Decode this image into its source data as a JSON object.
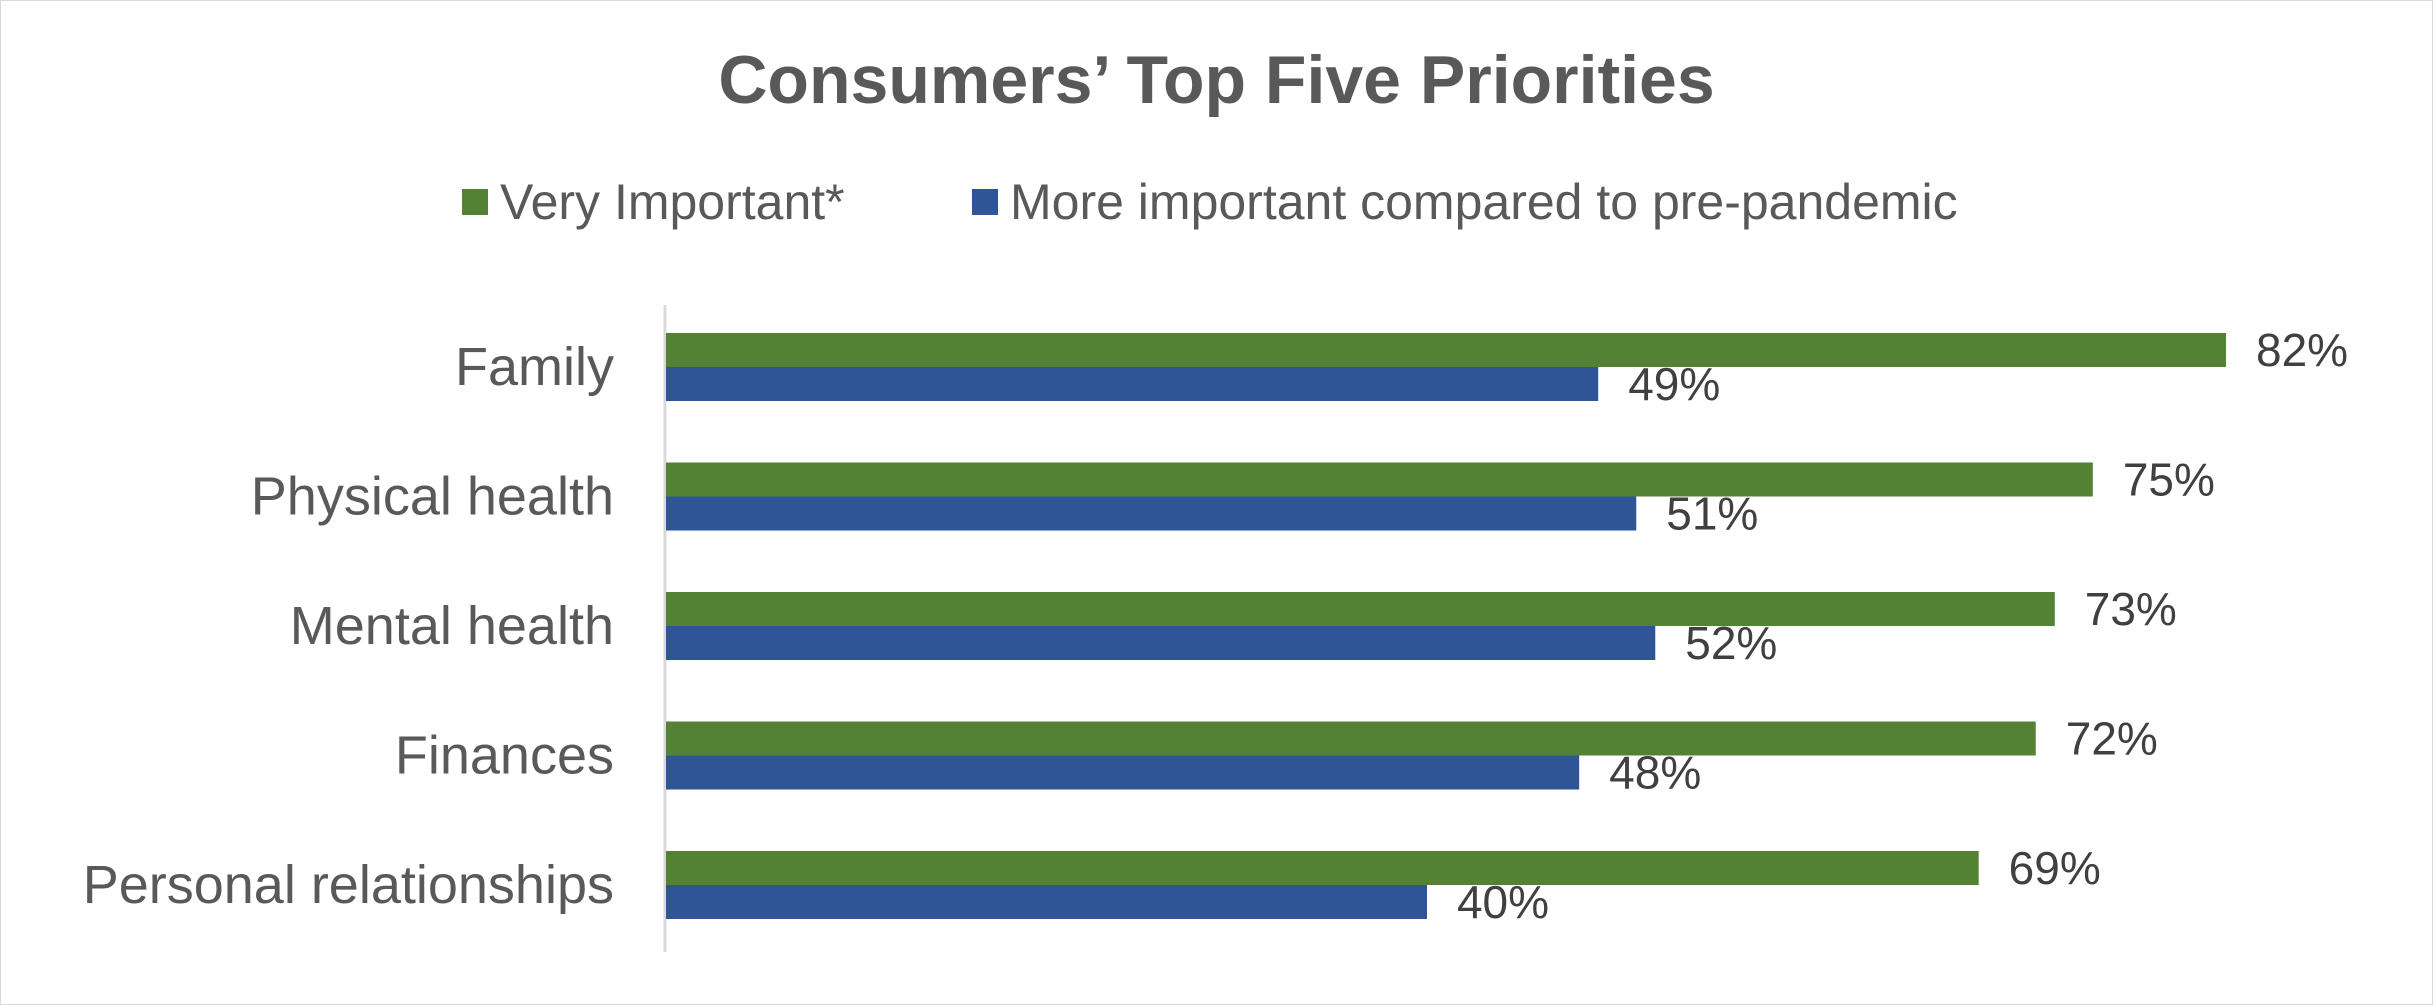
{
  "chart_data": {
    "type": "bar",
    "orientation": "horizontal",
    "title": "Consumers’ Top Five Priorities",
    "categories": [
      "Family",
      "Physical health",
      "Mental health",
      "Finances",
      "Personal relationships"
    ],
    "series": [
      {
        "name": "Very Important*",
        "color": "#548235",
        "values": [
          82,
          75,
          73,
          72,
          69
        ],
        "labels": [
          "82%",
          "75%",
          "73%",
          "72%",
          "69%"
        ]
      },
      {
        "name": "More important compared to pre-pandemic",
        "color": "#2F5597",
        "values": [
          49,
          51,
          52,
          48,
          40
        ],
        "labels": [
          "49%",
          "51%",
          "52%",
          "48%",
          "40%"
        ]
      }
    ],
    "xlim": [
      0,
      92
    ],
    "xlabel": "",
    "ylabel": "",
    "grid": false,
    "legend_position": "top"
  },
  "colors": {
    "text": "#595959",
    "axis": "#d9d9d9",
    "frame": "#d9d9d9"
  }
}
